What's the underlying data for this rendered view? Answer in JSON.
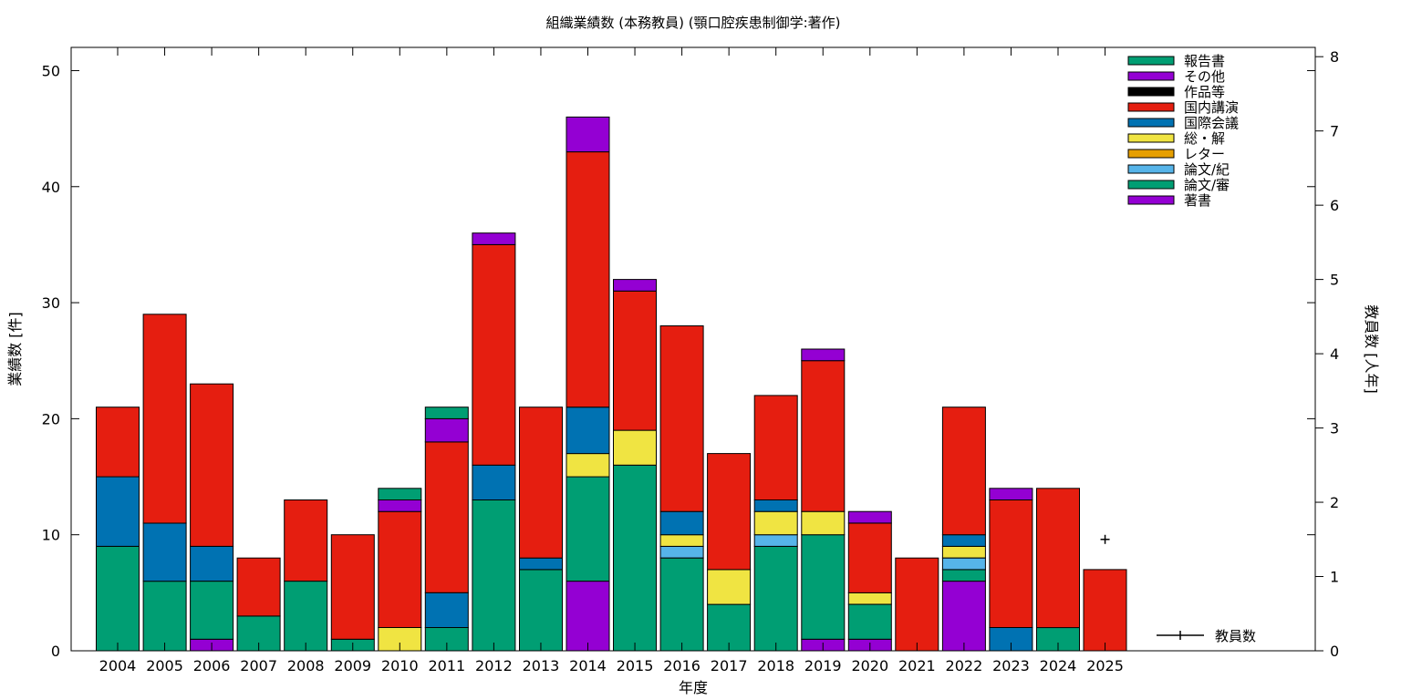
{
  "chart_data": {
    "type": "bar",
    "stacked": true,
    "title": "組織業績数 (本務教員) (顎口腔疾患制御学:著作)",
    "xlabel": "年度",
    "ylabel": "業績数 [件]",
    "y2label": "教員数 [人年]",
    "ylim": [
      0,
      52
    ],
    "y2lim": [
      0,
      8.125
    ],
    "yticks": [
      0,
      10,
      20,
      30,
      40,
      50
    ],
    "y2ticks": [
      0,
      1,
      2,
      3,
      4,
      5,
      6,
      7,
      8
    ],
    "grid": false,
    "legend_position": "top-right",
    "categories": [
      "2004",
      "2005",
      "2006",
      "2007",
      "2008",
      "2009",
      "2010",
      "2011",
      "2012",
      "2013",
      "2014",
      "2015",
      "2016",
      "2017",
      "2018",
      "2019",
      "2020",
      "2021",
      "2022",
      "2023",
      "2024",
      "2025"
    ],
    "series": [
      {
        "name": "著書",
        "color": "#9400d3",
        "values": [
          0,
          0,
          1,
          0,
          0,
          0,
          0,
          0,
          0,
          0,
          6,
          0,
          0,
          0,
          0,
          1,
          1,
          0,
          6,
          0,
          0,
          0
        ]
      },
      {
        "name": "論文/審",
        "color": "#009e73",
        "values": [
          9,
          6,
          5,
          3,
          6,
          1,
          0,
          2,
          13,
          7,
          9,
          16,
          8,
          4,
          9,
          9,
          3,
          0,
          1,
          0,
          2,
          0
        ]
      },
      {
        "name": "論文/紀",
        "color": "#56b4e9",
        "values": [
          0,
          0,
          0,
          0,
          0,
          0,
          0,
          0,
          0,
          0,
          0,
          0,
          1,
          0,
          1,
          0,
          0,
          0,
          1,
          0,
          0,
          0
        ]
      },
      {
        "name": "レター",
        "color": "#e69f00",
        "values": [
          0,
          0,
          0,
          0,
          0,
          0,
          0,
          0,
          0,
          0,
          0,
          0,
          0,
          0,
          0,
          0,
          0,
          0,
          0,
          0,
          0,
          0
        ]
      },
      {
        "name": "総・解",
        "color": "#f0e442",
        "values": [
          0,
          0,
          0,
          0,
          0,
          0,
          2,
          0,
          0,
          0,
          2,
          3,
          1,
          3,
          2,
          2,
          1,
          0,
          1,
          0,
          0,
          0
        ]
      },
      {
        "name": "国際会議",
        "color": "#0072b2",
        "values": [
          6,
          5,
          3,
          0,
          0,
          0,
          0,
          3,
          3,
          1,
          4,
          0,
          2,
          0,
          1,
          0,
          0,
          0,
          1,
          2,
          0,
          0
        ]
      },
      {
        "name": "国内講演",
        "color": "#e51e10",
        "values": [
          6,
          18,
          14,
          5,
          7,
          9,
          10,
          13,
          19,
          13,
          22,
          12,
          16,
          10,
          9,
          13,
          6,
          8,
          11,
          11,
          12,
          7
        ]
      },
      {
        "name": "作品等",
        "color": "#000000",
        "values": [
          0,
          0,
          0,
          0,
          0,
          0,
          0,
          0,
          0,
          0,
          0,
          0,
          0,
          0,
          0,
          0,
          0,
          0,
          0,
          0,
          0,
          0
        ]
      },
      {
        "name": "その他",
        "color": "#9400d3",
        "values": [
          0,
          0,
          0,
          0,
          0,
          0,
          1,
          2,
          1,
          0,
          3,
          1,
          0,
          0,
          0,
          1,
          1,
          0,
          0,
          1,
          0,
          0
        ]
      },
      {
        "name": "報告書",
        "color": "#009e73",
        "values": [
          0,
          0,
          0,
          0,
          0,
          0,
          1,
          1,
          0,
          0,
          0,
          0,
          0,
          0,
          0,
          0,
          0,
          0,
          0,
          0,
          0,
          0
        ]
      }
    ],
    "line_series": {
      "name": "教員数",
      "axis": "y2",
      "color": "#000000",
      "values": [
        null,
        null,
        null,
        null,
        null,
        null,
        null,
        null,
        null,
        null,
        null,
        null,
        null,
        null,
        null,
        null,
        null,
        null,
        null,
        null,
        null,
        1.5
      ]
    }
  }
}
